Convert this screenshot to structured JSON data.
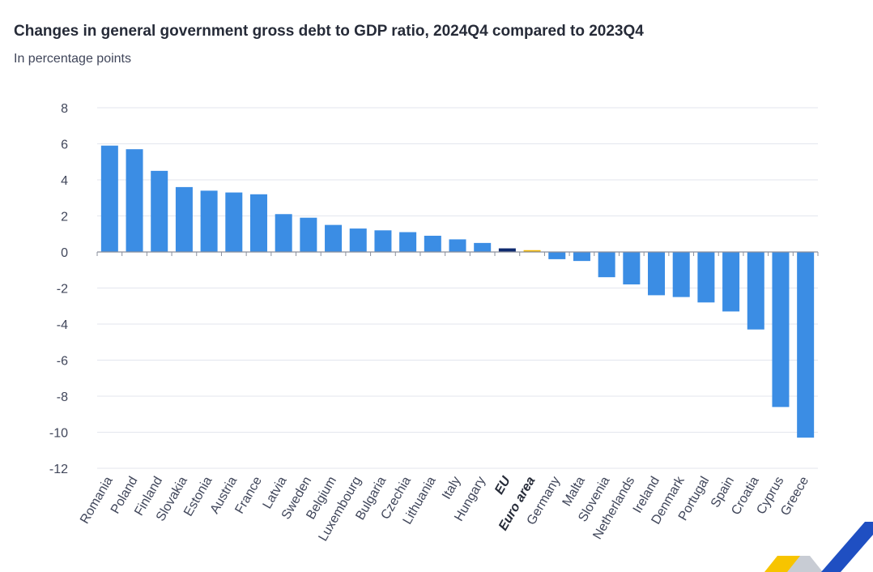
{
  "chart_data": {
    "type": "bar",
    "title": "Changes in general government gross debt to GDP ratio, 2024Q4 compared to 2023Q4",
    "subtitle": "In percentage points",
    "xlabel": "",
    "ylabel": "",
    "ylim": [
      -12,
      8
    ],
    "yticks": [
      8,
      6,
      4,
      2,
      0,
      -2,
      -4,
      -6,
      -8,
      -10,
      -12
    ],
    "ytick_labels": [
      "8",
      "6",
      "4",
      "2",
      "0",
      "-2",
      "-4",
      "-6",
      "-8",
      "-10",
      "-12"
    ],
    "grid": true,
    "legend": "none",
    "categories": [
      "Romania",
      "Poland",
      "Finland",
      "Slovakia",
      "Estonia",
      "Austria",
      "France",
      "Latvia",
      "Sweden",
      "Belgium",
      "Luxembourg",
      "Bulgaria",
      "Czechia",
      "Lithuania",
      "Italy",
      "Hungary",
      "EU",
      "Euro area",
      "Germany",
      "Malta",
      "Slovenia",
      "Netherlands",
      "Ireland",
      "Denmark",
      "Portugal",
      "Spain",
      "Croatia",
      "Cyprus",
      "Greece"
    ],
    "values": [
      5.9,
      5.7,
      4.5,
      3.6,
      3.4,
      3.3,
      3.2,
      2.1,
      1.9,
      1.5,
      1.3,
      1.2,
      1.1,
      0.9,
      0.7,
      0.5,
      0.2,
      0.1,
      -0.4,
      -0.5,
      -1.4,
      -1.8,
      -2.4,
      -2.5,
      -2.8,
      -3.3,
      -4.3,
      -8.6,
      -10.3
    ],
    "bar_colors": [
      "#3b8de4",
      "#3b8de4",
      "#3b8de4",
      "#3b8de4",
      "#3b8de4",
      "#3b8de4",
      "#3b8de4",
      "#3b8de4",
      "#3b8de4",
      "#3b8de4",
      "#3b8de4",
      "#3b8de4",
      "#3b8de4",
      "#3b8de4",
      "#3b8de4",
      "#3b8de4",
      "#0e2a6e",
      "#f2b705",
      "#3b8de4",
      "#3b8de4",
      "#3b8de4",
      "#3b8de4",
      "#3b8de4",
      "#3b8de4",
      "#3b8de4",
      "#3b8de4",
      "#3b8de4",
      "#3b8de4",
      "#3b8de4"
    ],
    "bold_categories": [
      "EU",
      "Euro area"
    ]
  },
  "colors": {
    "bar": "#3b8de4",
    "eu": "#0e2a6e",
    "euro_area": "#f2b705",
    "grid": "#e3e6ee",
    "axis": "#8a8f9c",
    "logo_yellow": "#f7c400",
    "logo_blue": "#1f4fc2",
    "logo_grey": "#c8ccd4"
  },
  "logo": {
    "icon": "eurostat-corner-logo-icon"
  }
}
